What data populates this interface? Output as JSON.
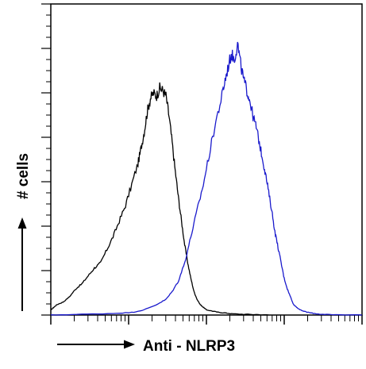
{
  "chart_data": {
    "type": "line",
    "title": "",
    "xlabel": "Anti - NLRP3",
    "ylabel": "# cells",
    "x_scale": "log",
    "xlim": [
      0,
      1
    ],
    "ylim": [
      0,
      1
    ],
    "grid": false,
    "legend": "none",
    "series": [
      {
        "color": "#000000",
        "x": [
          0.0,
          0.01,
          0.02,
          0.04,
          0.06,
          0.08,
          0.1,
          0.12,
          0.14,
          0.16,
          0.18,
          0.2,
          0.22,
          0.24,
          0.26,
          0.28,
          0.29,
          0.3,
          0.31,
          0.32,
          0.33,
          0.34,
          0.35,
          0.36,
          0.37,
          0.38,
          0.39,
          0.4,
          0.41,
          0.42,
          0.43,
          0.44,
          0.45,
          0.46,
          0.47,
          0.48,
          0.49,
          0.5,
          0.52,
          0.54,
          0.56,
          0.58,
          0.62,
          0.66,
          0.7
        ],
        "y": [
          0.02,
          0.03,
          0.04,
          0.05,
          0.07,
          0.1,
          0.12,
          0.15,
          0.18,
          0.2,
          0.25,
          0.3,
          0.36,
          0.42,
          0.5,
          0.58,
          0.64,
          0.7,
          0.78,
          0.83,
          0.85,
          0.84,
          0.87,
          0.86,
          0.84,
          0.76,
          0.66,
          0.55,
          0.45,
          0.36,
          0.27,
          0.2,
          0.14,
          0.09,
          0.06,
          0.04,
          0.03,
          0.02,
          0.015,
          0.01,
          0.008,
          0.005,
          0.003,
          0.002,
          0.0
        ]
      },
      {
        "color": "#1a1acc",
        "x": [
          0.0,
          0.1,
          0.2,
          0.26,
          0.3,
          0.34,
          0.37,
          0.39,
          0.41,
          0.43,
          0.45,
          0.47,
          0.49,
          0.51,
          0.53,
          0.55,
          0.56,
          0.57,
          0.58,
          0.59,
          0.6,
          0.61,
          0.62,
          0.63,
          0.64,
          0.65,
          0.66,
          0.67,
          0.68,
          0.69,
          0.7,
          0.71,
          0.72,
          0.73,
          0.74,
          0.75,
          0.76,
          0.77,
          0.78,
          0.79,
          0.8,
          0.82,
          0.84,
          0.86,
          0.88,
          0.92,
          1.0
        ],
        "y": [
          0.0,
          0.003,
          0.006,
          0.01,
          0.02,
          0.04,
          0.06,
          0.09,
          0.13,
          0.2,
          0.3,
          0.4,
          0.5,
          0.62,
          0.74,
          0.84,
          0.9,
          0.95,
          1.0,
          0.98,
          1.04,
          0.96,
          0.9,
          0.86,
          0.82,
          0.76,
          0.72,
          0.66,
          0.6,
          0.54,
          0.47,
          0.4,
          0.32,
          0.26,
          0.2,
          0.14,
          0.1,
          0.07,
          0.04,
          0.03,
          0.02,
          0.012,
          0.007,
          0.004,
          0.002,
          0.001,
          0.0
        ]
      }
    ]
  }
}
